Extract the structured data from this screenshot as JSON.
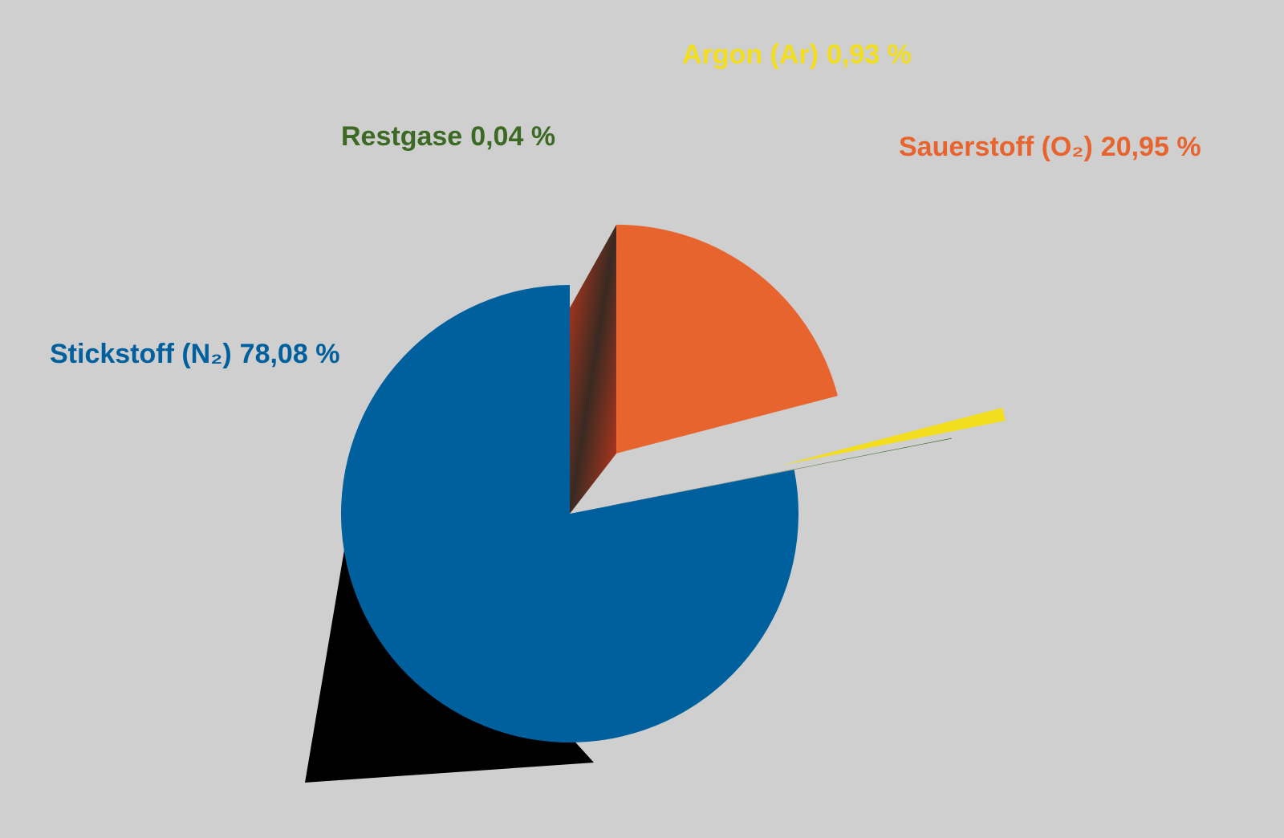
{
  "chart_data": {
    "type": "pie",
    "categories": [
      "Stickstoff (N₂)",
      "Sauerstoff (O₂)",
      "Argon (Ar)",
      "Restgase"
    ],
    "values": [
      78.08,
      20.95,
      0.93,
      0.04
    ],
    "value_labels": [
      "78,08 %",
      "20,95 %",
      "0,93 %",
      "0,04 %"
    ],
    "colors": [
      "#00609e",
      "#e8642e",
      "#f2de1c",
      "#3c6a24"
    ]
  }
}
